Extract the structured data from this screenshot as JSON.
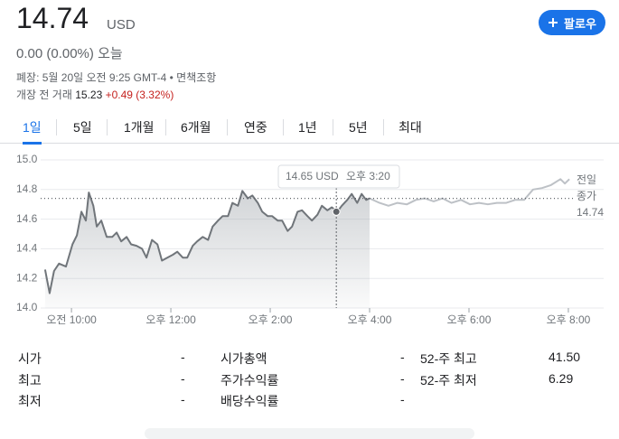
{
  "header": {
    "price": 14.74,
    "currency": "USD",
    "change": "0.00 (0.00%)",
    "change_period": "오늘",
    "status": "폐장: 5월 20일 오전 9:25 GMT-4 •",
    "disclaimer": "면책조항",
    "premarket_label": "개장 전 거래",
    "premarket_price": 15.23,
    "premarket_change": "+0.49 (3.32%)",
    "follow_button": "팔로우"
  },
  "tabs": [
    "1일",
    "5일",
    "1개월",
    "6개월",
    "연중",
    "1년",
    "5년",
    "최대"
  ],
  "chart_data": {
    "type": "line",
    "ylim": [
      14.0,
      15.0
    ],
    "yticks": [
      {
        "value": 14.0,
        "label": "14.0"
      },
      {
        "value": 14.2,
        "label": "14.2"
      },
      {
        "value": 14.4,
        "label": "14.4"
      },
      {
        "value": 14.6,
        "label": "14.6"
      },
      {
        "value": 14.8,
        "label": "14.8"
      },
      {
        "value": 15.0,
        "label": "15.0"
      }
    ],
    "xlim": [
      9.38,
      20.71
    ],
    "xticks": [
      {
        "value": 10,
        "label": "오전 10:00"
      },
      {
        "value": 12,
        "label": "오후 12:00"
      },
      {
        "value": 14,
        "label": "오후 2:00"
      },
      {
        "value": 16,
        "label": "오후 4:00"
      },
      {
        "value": 18,
        "label": "오후 6:00"
      },
      {
        "value": 20,
        "label": "오후 8:00"
      }
    ],
    "grid": true,
    "series": [
      {
        "color": "#70757a",
        "fill": true,
        "x": [
          9.47,
          9.56,
          9.65,
          9.75,
          9.89,
          10.02,
          10.11,
          10.2,
          10.29,
          10.35,
          10.44,
          10.51,
          10.6,
          10.71,
          10.82,
          10.91,
          11.0,
          11.11,
          11.2,
          11.31,
          11.42,
          11.51,
          11.62,
          11.73,
          11.82,
          11.93,
          12.04,
          12.13,
          12.24,
          12.33,
          12.44,
          12.53,
          12.64,
          12.75,
          12.84,
          12.95,
          13.04,
          13.15,
          13.24,
          13.35,
          13.44,
          13.55,
          13.64,
          13.75,
          13.84,
          13.95,
          14.04,
          14.15,
          14.24,
          14.35,
          14.44,
          14.55,
          14.64,
          14.75,
          14.84,
          14.95,
          15.04,
          15.15,
          15.24,
          15.35,
          15.44,
          15.55,
          15.64,
          15.75,
          15.84,
          15.93,
          16.0
        ],
        "values": [
          14.26,
          14.1,
          14.25,
          14.3,
          14.28,
          14.43,
          14.49,
          14.65,
          14.59,
          14.78,
          14.69,
          14.55,
          14.59,
          14.48,
          14.48,
          14.51,
          14.45,
          14.48,
          14.43,
          14.42,
          14.4,
          14.34,
          14.46,
          14.43,
          14.32,
          14.34,
          14.36,
          14.38,
          14.34,
          14.34,
          14.42,
          14.45,
          14.48,
          14.46,
          14.55,
          14.59,
          14.62,
          14.62,
          14.71,
          14.69,
          14.79,
          14.74,
          14.76,
          14.71,
          14.65,
          14.62,
          14.62,
          14.59,
          14.59,
          14.52,
          14.55,
          14.65,
          14.66,
          14.62,
          14.59,
          14.63,
          14.69,
          14.66,
          14.68,
          14.65,
          14.69,
          14.73,
          14.77,
          14.71,
          14.77,
          14.73,
          14.74
        ]
      },
      {
        "color": "#bdc1c6",
        "fill": false,
        "x": [
          16.0,
          16.2,
          16.38,
          16.56,
          16.75,
          16.93,
          17.11,
          17.29,
          17.47,
          17.65,
          17.84,
          18.02,
          18.2,
          18.38,
          18.56,
          18.75,
          18.93,
          19.11,
          19.29,
          19.47,
          19.65,
          19.84,
          19.93,
          20.02
        ],
        "values": [
          14.74,
          14.71,
          14.69,
          14.71,
          14.7,
          14.73,
          14.74,
          14.72,
          14.74,
          14.71,
          14.73,
          14.7,
          14.71,
          14.7,
          14.71,
          14.71,
          14.73,
          14.73,
          14.8,
          14.81,
          14.83,
          14.87,
          14.84,
          14.87
        ]
      }
    ],
    "previous_close": {
      "label": [
        "전일",
        "종가"
      ],
      "value": 14.74
    },
    "tooltip": {
      "x": 15.33,
      "value": 14.65,
      "value_label": "14.65 USD",
      "time_label": "오후 3:20"
    }
  },
  "stats": [
    [
      [
        "시가",
        "-"
      ],
      [
        "최고",
        "-"
      ],
      [
        "최저",
        "-"
      ]
    ],
    [
      [
        "시가총액",
        "-"
      ],
      [
        "주가수익률",
        "-"
      ],
      [
        "배당수익률",
        "-"
      ]
    ],
    [
      [
        "52-주 최고",
        "41.50"
      ],
      [
        "52-주 최저",
        "6.29"
      ]
    ]
  ]
}
